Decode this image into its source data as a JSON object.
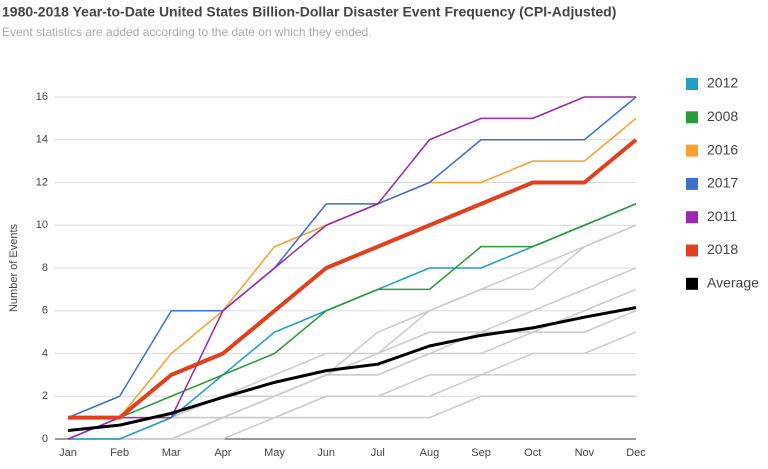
{
  "chart_data": {
    "type": "line",
    "title": "1980-2018 Year-to-Date United States Billion-Dollar Disaster Event Frequency (CPI-Adjusted)",
    "subtitle": "Event statistics are added according to the date on which they ended.",
    "y_label": "Number of Events",
    "categories": [
      "Jan",
      "Feb",
      "Mar",
      "Apr",
      "May",
      "Jun",
      "Jul",
      "Aug",
      "Sep",
      "Oct",
      "Nov",
      "Dec"
    ],
    "ylim": [
      0,
      16
    ],
    "yticks": [
      0,
      2,
      4,
      6,
      8,
      10,
      12,
      14,
      16
    ],
    "grid": true,
    "legend": "right",
    "series": [
      {
        "color": "#cccccc",
        "line_width": 1.5,
        "values": [
          0,
          0,
          0,
          1,
          2,
          3,
          4,
          6,
          7,
          7,
          9,
          10
        ]
      },
      {
        "color": "#cccccc",
        "line_width": 1.5,
        "values": [
          0,
          0,
          1,
          1,
          2,
          3,
          5,
          6,
          7,
          8,
          9,
          10
        ]
      },
      {
        "color": "#cccccc",
        "line_width": 1.5,
        "values": [
          0,
          0,
          1,
          2,
          3,
          4,
          4,
          5,
          5,
          6,
          7,
          8
        ]
      },
      {
        "color": "#cccccc",
        "line_width": 1.5,
        "values": [
          0,
          0,
          0,
          1,
          2,
          3,
          3,
          4,
          5,
          5,
          6,
          7
        ]
      },
      {
        "color": "#cccccc",
        "line_width": 1.5,
        "values": [
          0,
          1,
          1,
          2,
          2,
          3,
          3,
          4,
          4,
          5,
          5,
          6
        ]
      },
      {
        "color": "#cccccc",
        "line_width": 1.5,
        "values": [
          0,
          0,
          0,
          1,
          1,
          2,
          2,
          3,
          3,
          4,
          4,
          5
        ]
      },
      {
        "color": "#cccccc",
        "line_width": 1.5,
        "values": [
          0,
          0,
          1,
          1,
          1,
          2,
          2,
          2,
          3,
          3,
          3,
          3
        ]
      },
      {
        "color": "#cccccc",
        "line_width": 1.5,
        "values": [
          0,
          0,
          0,
          0,
          1,
          1,
          1,
          1,
          2,
          2,
          2,
          2
        ]
      },
      {
        "name": "2012",
        "color": "#1f9fc4",
        "line_width": 1.5,
        "values": [
          0,
          0,
          1,
          3,
          5,
          6,
          7,
          8,
          8,
          9,
          10,
          11
        ]
      },
      {
        "name": "2008",
        "color": "#2a9a3a",
        "line_width": 1.5,
        "values": [
          1,
          1,
          2,
          3,
          4,
          6,
          7,
          7,
          9,
          9,
          10,
          11
        ]
      },
      {
        "name": "2016",
        "color": "#f8a12e",
        "line_width": 1.5,
        "values": [
          1,
          1,
          4,
          6,
          9,
          10,
          11,
          12,
          12,
          13,
          13,
          15
        ]
      },
      {
        "name": "2017",
        "color": "#3d6fcc",
        "line_width": 1.5,
        "values": [
          1,
          2,
          6,
          6,
          8,
          11,
          11,
          12,
          14,
          14,
          14,
          16
        ]
      },
      {
        "name": "2011",
        "color": "#9c27b0",
        "line_width": 1.5,
        "values": [
          0,
          1,
          1,
          6,
          8,
          10,
          11,
          14,
          15,
          15,
          16,
          16
        ]
      },
      {
        "name": "2018",
        "color": "#e0401c",
        "line_width": 4,
        "values": [
          1,
          1,
          3,
          4,
          6,
          8,
          9,
          10,
          11,
          12,
          12,
          14
        ]
      },
      {
        "name": "Average",
        "color": "#000000",
        "line_width": 3,
        "values": [
          0.4,
          0.65,
          1.2,
          1.95,
          2.65,
          3.2,
          3.5,
          4.35,
          4.85,
          5.2,
          5.7,
          6.15
        ]
      }
    ]
  }
}
